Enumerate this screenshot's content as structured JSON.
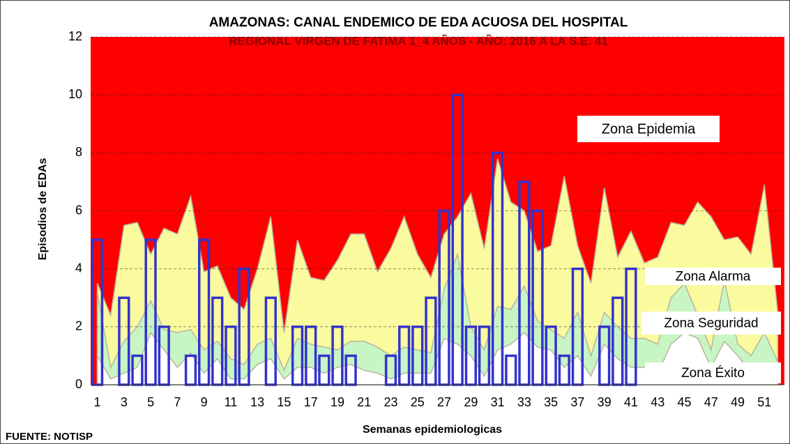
{
  "chart_data": {
    "type": "endemic-channel",
    "title": "AMAZONAS: CANAL ENDEMICO DE EDA ACUOSA DEL HOSPITAL",
    "subtitle": "REGIONAL VIRGEN DE FATIMA  1_4 AÑOS -  AÑO: 2016 A LA S.E. 41",
    "x_label": "Semanas epidemiologicas",
    "y_label": "Episodios de EDAs",
    "source": "FUENTE: NOTISP",
    "categories": [
      1,
      null,
      3,
      null,
      5,
      null,
      7,
      null,
      9,
      null,
      11,
      null,
      13,
      null,
      15,
      null,
      17,
      null,
      19,
      null,
      21,
      null,
      23,
      null,
      25,
      null,
      27,
      null,
      29,
      null,
      31,
      null,
      33,
      null,
      35,
      null,
      37,
      null,
      39,
      null,
      41,
      null,
      43,
      null,
      45,
      null,
      47,
      null,
      49,
      null,
      51,
      null
    ],
    "ylim": [
      0,
      12
    ],
    "yticks": [
      0,
      2,
      4,
      6,
      8,
      10,
      12
    ],
    "grid": true,
    "epidemic_zone": {
      "name": "Zona Epidemia",
      "color": "#ff0000"
    },
    "zones": [
      {
        "name": "Zona Alarma",
        "color": "#fafa9e",
        "values": [
          3.5,
          2.4,
          5.5,
          5.6,
          4.5,
          5.4,
          5.2,
          6.5,
          3.9,
          4.1,
          3.0,
          2.6,
          4.0,
          5.8,
          1.8,
          5.0,
          3.7,
          3.6,
          4.3,
          5.2,
          5.2,
          3.9,
          4.7,
          5.8,
          4.5,
          3.7,
          5.2,
          5.8,
          6.6,
          4.7,
          7.8,
          6.3,
          6.0,
          4.6,
          4.8,
          7.2,
          4.8,
          3.5,
          6.8,
          4.4,
          5.3,
          4.2,
          4.4,
          5.6,
          5.5,
          6.3,
          5.8,
          5.0,
          5.1,
          4.5,
          6.9,
          2.5
        ]
      },
      {
        "name": "Zona Seguridad",
        "color": "#c8f5c4",
        "values": [
          3.2,
          0.6,
          1.5,
          2.0,
          2.9,
          1.9,
          1.8,
          1.9,
          1.2,
          1.5,
          0.9,
          0.7,
          1.4,
          1.6,
          0.5,
          1.6,
          1.4,
          1.3,
          1.2,
          1.5,
          1.5,
          1.3,
          1.0,
          1.3,
          1.2,
          1.1,
          3.3,
          4.5,
          2.0,
          1.2,
          2.7,
          2.6,
          3.4,
          2.2,
          1.9,
          1.6,
          2.5,
          1.0,
          2.5,
          2.0,
          1.6,
          1.6,
          1.4,
          3.0,
          3.5,
          2.4,
          1.2,
          3.6,
          1.4,
          1.0,
          1.8,
          0.8
        ]
      },
      {
        "name": "Zona Éxito",
        "color": "#ffffff",
        "values": [
          1.0,
          0.2,
          0.4,
          0.6,
          1.8,
          1.2,
          0.6,
          1.1,
          0.4,
          0.9,
          0.2,
          0.2,
          0.7,
          0.9,
          0.2,
          0.6,
          0.6,
          0.4,
          0.6,
          0.7,
          0.5,
          0.4,
          0.2,
          0.4,
          0.4,
          0.4,
          1.6,
          1.4,
          1.0,
          0.3,
          1.2,
          1.4,
          1.8,
          1.3,
          1.2,
          0.6,
          1.0,
          0.3,
          1.4,
          0.9,
          0.6,
          0.6,
          0.4,
          1.4,
          1.8,
          1.6,
          0.6,
          1.5,
          1.0,
          0.4,
          0.5,
          0.3
        ]
      }
    ],
    "bars": {
      "color": "#3333cc",
      "values": [
        5,
        0,
        3,
        1,
        5,
        2,
        0,
        1,
        5,
        3,
        2,
        4,
        0,
        3,
        0,
        2,
        2,
        1,
        2,
        1,
        0,
        0,
        1,
        2,
        2,
        3,
        6,
        10,
        2,
        2,
        8,
        1,
        7,
        6,
        2,
        1,
        4,
        0,
        2,
        3,
        4,
        null,
        null,
        null,
        null,
        null,
        null,
        null,
        null,
        null,
        null,
        null
      ]
    }
  }
}
